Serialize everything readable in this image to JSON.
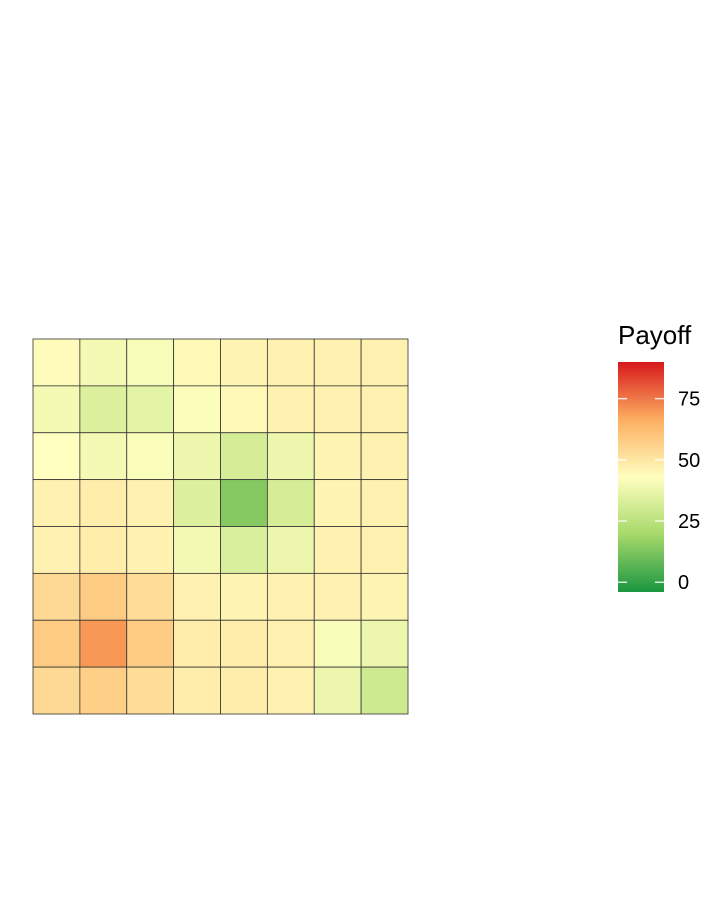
{
  "chart_data": {
    "type": "heatmap",
    "rows": 8,
    "cols": 8,
    "values": [
      [
        44,
        40,
        41,
        45,
        46,
        47,
        47,
        47
      ],
      [
        40,
        34,
        36,
        42,
        45,
        47,
        47,
        47
      ],
      [
        43,
        40,
        42,
        38,
        32,
        38,
        46,
        47
      ],
      [
        47,
        48,
        47,
        34,
        14,
        32,
        46,
        47
      ],
      [
        47,
        48,
        47,
        40,
        33,
        38,
        47,
        47
      ],
      [
        54,
        58,
        53,
        47,
        46,
        47,
        47,
        46
      ],
      [
        58,
        70,
        58,
        48,
        48,
        47,
        41,
        38
      ],
      [
        54,
        57,
        53,
        48,
        48,
        47,
        38,
        30
      ]
    ],
    "legend": {
      "title": "Payoff",
      "ticks": [
        0,
        25,
        50,
        75
      ],
      "range": [
        -4,
        90
      ],
      "placement": "right"
    },
    "colorscale": [
      "#1a9641",
      "#a6d96a",
      "#ffffbf",
      "#fdae61",
      "#d7191c"
    ],
    "grid_line_color": "#333333"
  }
}
